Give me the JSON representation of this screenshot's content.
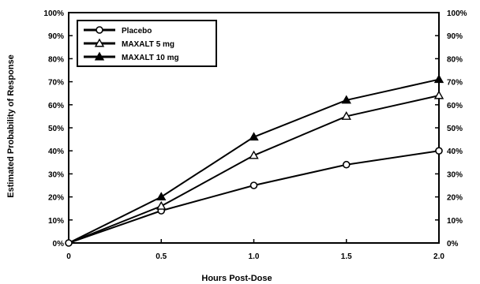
{
  "chart_data": {
    "type": "line",
    "title": "",
    "xlabel": "Hours Post-Dose",
    "ylabel": "Estimated Probability of Response",
    "x": [
      0,
      0.5,
      1.0,
      1.5,
      2.0
    ],
    "x_tick_labels": [
      "0",
      "0.5",
      "1.0",
      "1.5",
      "2.0"
    ],
    "xlim": [
      0,
      2.0
    ],
    "ylim": [
      0,
      100
    ],
    "y_tick_labels": [
      "0%",
      "10%",
      "20%",
      "30%",
      "40%",
      "50%",
      "60%",
      "70%",
      "80%",
      "90%",
      "100%"
    ],
    "grid": false,
    "legend_position": "top-left",
    "series": [
      {
        "name": "Placebo",
        "marker": "circle",
        "values": [
          0,
          14,
          25,
          34,
          40
        ]
      },
      {
        "name": "MAXALT 5 mg",
        "marker": "triangle-open",
        "values": [
          0,
          16,
          38,
          55,
          64
        ]
      },
      {
        "name": "MAXALT 10 mg",
        "marker": "triangle-filled",
        "values": [
          0,
          20,
          46,
          62,
          71
        ]
      }
    ]
  }
}
